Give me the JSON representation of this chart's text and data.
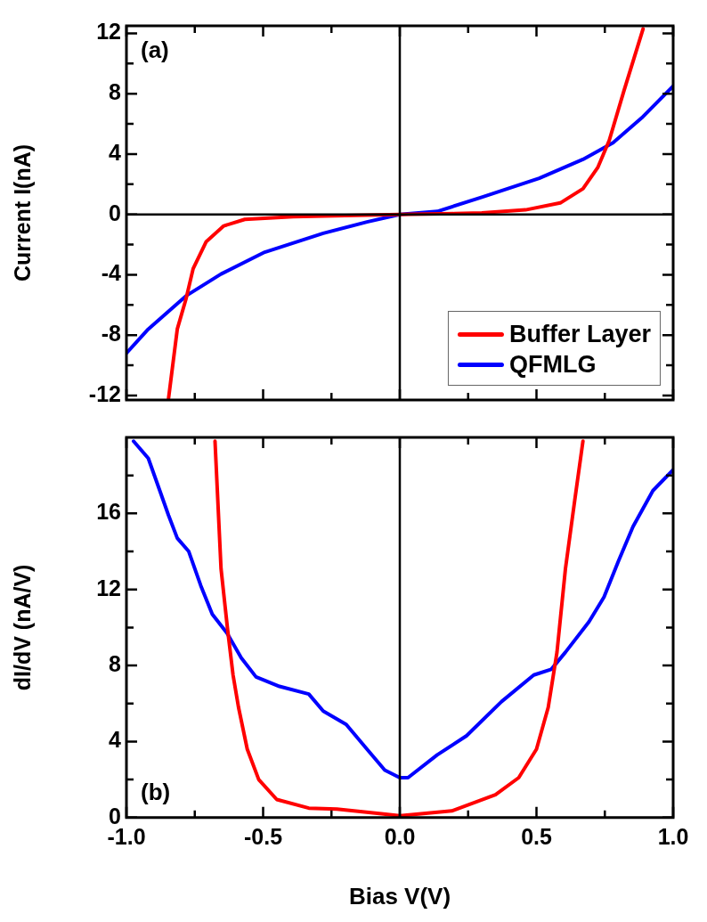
{
  "chart_data": [
    {
      "type": "line",
      "ylabel": "Current I(nA)",
      "annotations": [
        "(a)"
      ],
      "legend": "bottom right",
      "tick_labels": "y",
      "xlim": [
        -1,
        1
      ],
      "xticks": [
        -1,
        {
          "value": -0.75,
          "label": null
        },
        -0.5,
        {
          "value": -0.25,
          "label": null
        },
        0,
        {
          "value": 0.25,
          "label": null
        },
        0.5,
        {
          "value": 0.75,
          "label": null
        },
        1
      ],
      "ylim": [
        -12.3,
        12.5
      ],
      "yticks": [
        -12,
        {
          "value": -10,
          "label": null
        },
        -8,
        {
          "value": -6,
          "label": null
        },
        -4,
        {
          "value": -2,
          "label": null
        },
        0,
        {
          "value": 2,
          "label": null
        },
        4,
        {
          "value": 6,
          "label": null
        },
        8,
        {
          "value": 10,
          "label": null
        },
        12
      ],
      "ref_lines": [
        {
          "axis": "y",
          "value": 0,
          "color": "#000000"
        },
        {
          "axis": "x",
          "value": 0,
          "color": "#000000"
        }
      ],
      "series": [
        {
          "name": "Buffer Layer",
          "color": "#ff0000",
          "x": [
            -0.846,
            -0.814,
            -0.782,
            -0.756,
            -0.708,
            -0.644,
            -0.567,
            -0.39,
            -0.2,
            0,
            0.2,
            0.3,
            0.46,
            0.587,
            0.67,
            0.724,
            0.766,
            0.82,
            0.89
          ],
          "values": [
            -12.2,
            -7.6,
            -5.6,
            -3.6,
            -1.8,
            -0.76,
            -0.33,
            -0.15,
            -0.07,
            0,
            0.05,
            0.1,
            0.3,
            0.76,
            1.7,
            3.1,
            4.9,
            8.2,
            12.3
          ]
        },
        {
          "name": "QFMLG",
          "color": "#0000ff",
          "x": [
            -1,
            -0.92,
            -0.782,
            -0.654,
            -0.494,
            -0.28,
            -0.12,
            0,
            0.137,
            0.3,
            0.51,
            0.67,
            0.78,
            0.885,
            1
          ],
          "values": [
            -9.2,
            -7.6,
            -5.4,
            -3.95,
            -2.5,
            -1.25,
            -0.5,
            0,
            0.2,
            1.14,
            2.4,
            3.65,
            4.75,
            6.4,
            8.5
          ]
        }
      ]
    },
    {
      "type": "line",
      "xlabel": "Bias V(V)",
      "ylabel": "dI/dV (nA/V)",
      "annotations": [
        "(b)"
      ],
      "xlim": [
        -1,
        1
      ],
      "xticks": [
        {
          "value": -1,
          "label": "-1.0"
        },
        {
          "value": -0.75,
          "label": null
        },
        {
          "value": -0.5,
          "label": "-0.5"
        },
        {
          "value": -0.25,
          "label": null
        },
        {
          "value": 0,
          "label": "0.0"
        },
        {
          "value": 0.25,
          "label": null
        },
        {
          "value": 0.5,
          "label": "0.5"
        },
        {
          "value": 0.75,
          "label": null
        },
        {
          "value": 1,
          "label": "1.0"
        }
      ],
      "ylim": [
        0,
        20
      ],
      "yticks": [
        0,
        {
          "value": 2,
          "label": null
        },
        4,
        {
          "value": 6,
          "label": null
        },
        8,
        {
          "value": 10,
          "label": null
        },
        12,
        {
          "value": 14,
          "label": null
        },
        16,
        {
          "value": 18,
          "label": null
        }
      ],
      "ref_lines": [
        {
          "axis": "x",
          "value": 0,
          "color": "#000000"
        }
      ],
      "series": [
        {
          "color": "#ff0000",
          "x": [
            -0.676,
            -0.654,
            -0.63,
            -0.61,
            -0.59,
            -0.558,
            -0.516,
            -0.45,
            -0.333,
            -0.23,
            -0.067,
            0,
            0.19,
            0.35,
            0.435,
            0.5,
            0.543,
            0.575,
            0.606,
            0.64,
            0.67
          ],
          "values": [
            19.8,
            13.1,
            9.9,
            7.5,
            5.8,
            3.6,
            2.0,
            0.95,
            0.5,
            0.45,
            0.2,
            0.1,
            0.35,
            1.2,
            2.1,
            3.6,
            5.8,
            8.7,
            13.1,
            16.7,
            19.8
          ]
        },
        {
          "color": "#0000ff",
          "x": [
            -0.974,
            -0.92,
            -0.878,
            -0.846,
            -0.814,
            -0.772,
            -0.728,
            -0.686,
            -0.632,
            -0.58,
            -0.526,
            -0.44,
            -0.333,
            -0.28,
            -0.196,
            -0.12,
            -0.055,
            0,
            0.03,
            0.137,
            0.244,
            0.372,
            0.49,
            0.554,
            0.606,
            0.692,
            0.747,
            0.8,
            0.853,
            0.926,
            1
          ],
          "values": [
            19.8,
            18.9,
            17.2,
            15.9,
            14.7,
            14.0,
            12.2,
            10.7,
            9.7,
            8.4,
            7.4,
            6.9,
            6.5,
            5.6,
            4.9,
            3.6,
            2.5,
            2.1,
            2.1,
            3.3,
            4.3,
            6.1,
            7.5,
            7.8,
            8.7,
            10.3,
            11.6,
            13.5,
            15.3,
            17.2,
            18.3
          ]
        }
      ]
    }
  ]
}
